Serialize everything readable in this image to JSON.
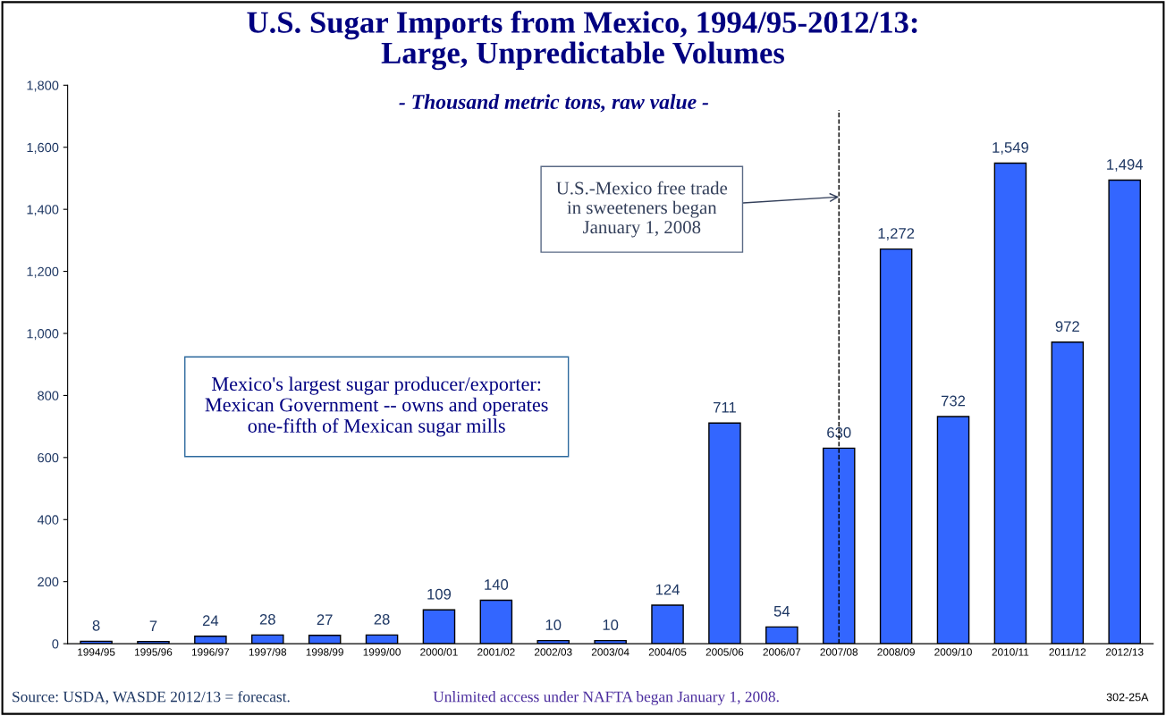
{
  "chart_data": {
    "type": "bar",
    "title": "U.S. Sugar Imports from Mexico, 1994/95-2012/13:\nLarge, Unpredictable Volumes",
    "subtitle": "- Thousand metric tons, raw value -",
    "categories": [
      "1994/95",
      "1995/96",
      "1996/97",
      "1997/98",
      "1998/99",
      "1999/00",
      "2000/01",
      "2001/02",
      "2002/03",
      "2003/04",
      "2004/05",
      "2005/06",
      "2006/07",
      "2007/08",
      "2008/09",
      "2009/10",
      "2010/11",
      "2011/12",
      "2012/13"
    ],
    "values": [
      8,
      7,
      24,
      28,
      27,
      28,
      109,
      140,
      10,
      10,
      124,
      711,
      54,
      630,
      1272,
      732,
      1549,
      972,
      1494
    ],
    "color": "#3366ff",
    "data_labels": true,
    "value_labels": [
      "8",
      "7",
      "24",
      "28",
      "27",
      "28",
      "109",
      "140",
      "10",
      "10",
      "124",
      "711",
      "54",
      "630",
      "1,272",
      "732",
      "1,549",
      "972",
      "1,494"
    ],
    "ylim": [
      0,
      1800
    ],
    "yticks": [
      {
        "value": 0,
        "label": "0"
      },
      {
        "value": 200,
        "label": "200"
      },
      {
        "value": 400,
        "label": "400"
      },
      {
        "value": 600,
        "label": "600"
      },
      {
        "value": 800,
        "label": "800"
      },
      {
        "value": 1000,
        "label": "1,000"
      },
      {
        "value": 1200,
        "label": "1,200"
      },
      {
        "value": 1400,
        "label": "1,400"
      },
      {
        "value": 1600,
        "label": "1,600"
      },
      {
        "value": 1800,
        "label": "1,800"
      }
    ],
    "ref_lines": [
      {
        "axis": "x",
        "value": "2007/08",
        "color": "#000000",
        "line_style": "dashed"
      }
    ],
    "annotations": [
      {
        "text": "U.S.-Mexico free trade\nin sweeteners began\nJanuary 1, 2008",
        "x": "2007/08",
        "y": 1440
      },
      "Mexico's largest sugar producer/exporter:\nMexican Government -- owns and operates\none-fifth of Mexican sugar mills",
      "Source: USDA, WASDE 2012/13 = forecast.",
      "Unlimited access under NAFTA began January 1, 2008.",
      "302-25A"
    ],
    "grid": false,
    "legend": false
  }
}
